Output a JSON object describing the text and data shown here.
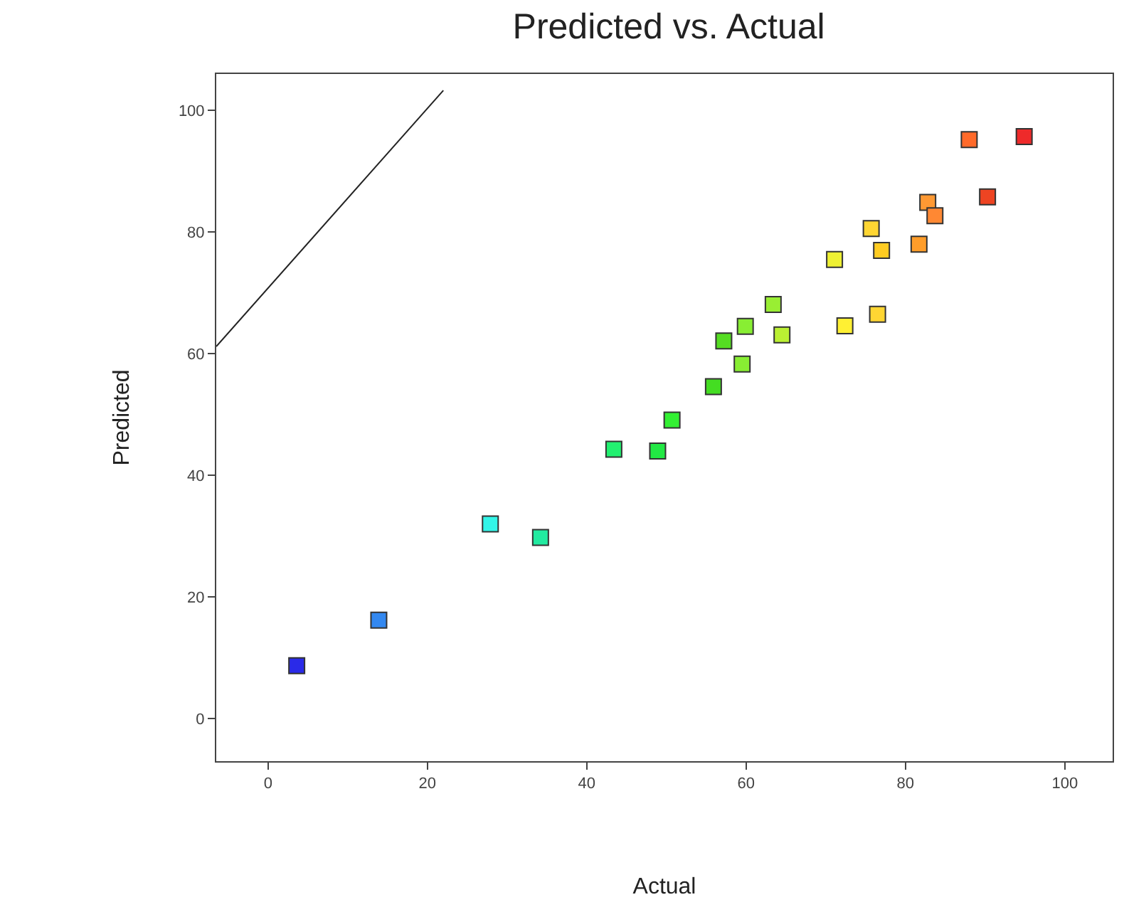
{
  "chart_data": {
    "type": "scatter",
    "title": "Predicted vs. Actual",
    "xlabel": "Actual",
    "ylabel": "Predicted",
    "xlim": [
      -6.5,
      106
    ],
    "ylim": [
      -7,
      106
    ],
    "xticks": [
      0,
      20,
      40,
      60,
      80,
      100
    ],
    "yticks": [
      0,
      20,
      40,
      60,
      80,
      100
    ],
    "grid": false,
    "marker": "square",
    "series": [
      {
        "x": [
          3.6,
          13.9,
          27.9,
          34.2,
          43.4,
          48.9,
          50.7,
          55.9,
          57.2,
          59.5,
          59.9,
          63.4,
          64.5,
          71.1,
          72.4,
          75.7,
          76.5,
          77.0,
          81.7,
          82.8,
          83.7,
          88.0,
          90.3,
          94.9
        ],
        "values": [
          8.7,
          16.2,
          32.0,
          29.8,
          44.3,
          44.0,
          49.1,
          54.6,
          62.1,
          58.3,
          64.5,
          68.1,
          63.1,
          75.5,
          64.6,
          80.6,
          66.5,
          77.0,
          78.0,
          84.9,
          82.7,
          95.2,
          85.8,
          95.7
        ],
        "colors": [
          "#2a2ae8",
          "#3388f0",
          "#33f5e8",
          "#22eaa0",
          "#22f070",
          "#22e844",
          "#33f033",
          "#44dd22",
          "#55dd22",
          "#88ee33",
          "#88ee33",
          "#99ee33",
          "#bbf033",
          "#eef033",
          "#fff033",
          "#ffd633",
          "#ffd633",
          "#ffcc22",
          "#ff9d2a",
          "#ff9933",
          "#ff8833",
          "#ff6a2a",
          "#ee4422",
          "#ee2a2a"
        ]
      },
      {
        "type": "line",
        "x": [
          -6.5,
          22.0
        ],
        "values": [
          61.2,
          103.3
        ],
        "color": "#222222",
        "line_style": "solid",
        "marker": "none"
      }
    ]
  }
}
